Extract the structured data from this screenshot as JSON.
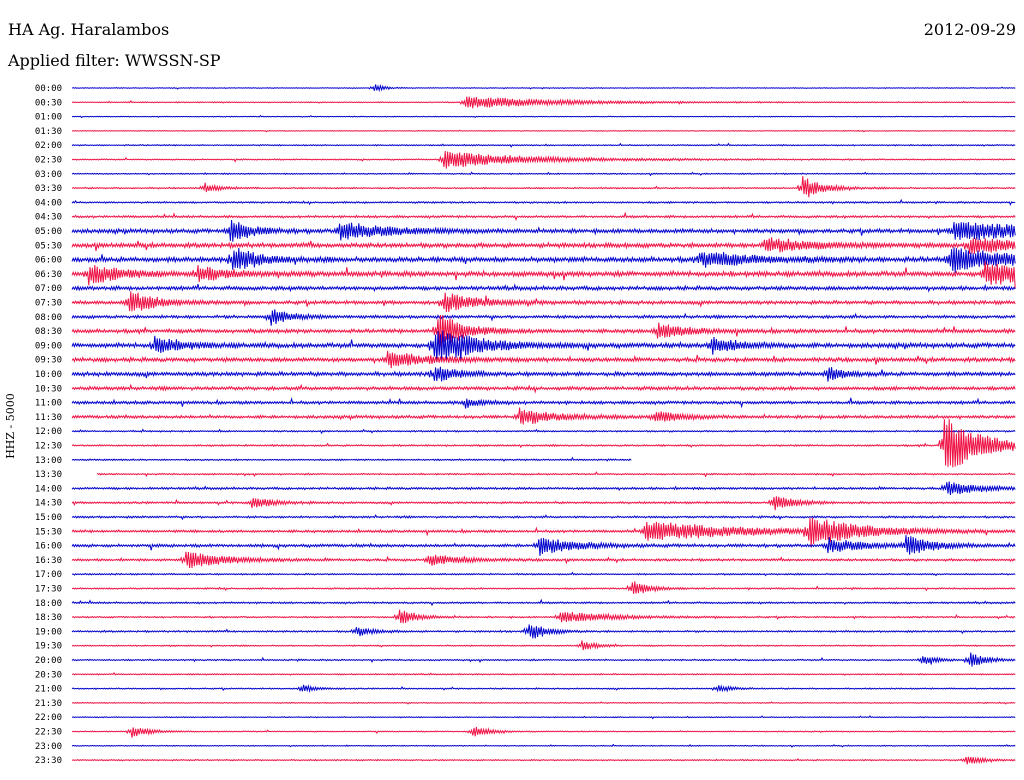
{
  "header": {
    "station": "HA Ag. Haralambos",
    "date": "2012-09-29",
    "filter": "Applied filter: WWSSN-SP"
  },
  "channel_label": "HHZ - 5000",
  "chart_data": {
    "type": "line",
    "title": "HA Ag. Haralambos",
    "subtitle": "Applied filter: WWSSN-SP",
    "ylabel": "HHZ - 5000",
    "xlabel": "",
    "row_labels": [
      "00:00",
      "00:30",
      "01:00",
      "01:30",
      "02:00",
      "02:30",
      "03:00",
      "03:30",
      "04:00",
      "04:30",
      "05:00",
      "05:30",
      "06:00",
      "06:30",
      "07:00",
      "07:30",
      "08:00",
      "08:30",
      "09:00",
      "09:30",
      "10:00",
      "10:30",
      "11:00",
      "11:30",
      "12:00",
      "12:30",
      "13:00",
      "13:30",
      "14:00",
      "14:30",
      "15:00",
      "15:30",
      "16:00",
      "16:30",
      "17:00",
      "17:30",
      "18:00",
      "18:30",
      "19:00",
      "19:30",
      "20:00",
      "20:30",
      "21:00",
      "21:30",
      "22:00",
      "22:30",
      "23:00",
      "23:30"
    ],
    "minutes_per_row": 30,
    "row_colors": [
      "#0000cc",
      "#ee1144"
    ],
    "background_amplitude": [
      0.3,
      0.4,
      0.3,
      0.3,
      0.5,
      0.5,
      0.5,
      0.6,
      0.7,
      0.9,
      1.6,
      1.8,
      2.0,
      2.0,
      1.5,
      1.4,
      1.2,
      1.5,
      1.8,
      1.6,
      1.6,
      1.4,
      1.2,
      1.2,
      0.6,
      0.7,
      0.6,
      0.6,
      0.9,
      0.8,
      0.8,
      1.0,
      1.2,
      0.9,
      0.6,
      0.6,
      0.7,
      0.6,
      0.7,
      0.5,
      0.6,
      0.5,
      0.5,
      0.4,
      0.4,
      0.4,
      0.4,
      0.5
    ],
    "events": [
      {
        "row": 0,
        "minute": 9.6,
        "amp": 4,
        "dur": 0.3
      },
      {
        "row": 1,
        "minute": 12.5,
        "amp": 7,
        "dur": 2.5
      },
      {
        "row": 5,
        "minute": 11.8,
        "amp": 9,
        "dur": 2.5
      },
      {
        "row": 7,
        "minute": 23.2,
        "amp": 12,
        "dur": 0.6
      },
      {
        "row": 7,
        "minute": 4.2,
        "amp": 5,
        "dur": 0.4
      },
      {
        "row": 10,
        "minute": 5.0,
        "amp": 13,
        "dur": 0.6
      },
      {
        "row": 10,
        "minute": 8.5,
        "amp": 9,
        "dur": 1.5
      },
      {
        "row": 10,
        "minute": 28.0,
        "amp": 10,
        "dur": 2.5
      },
      {
        "row": 11,
        "minute": 22.0,
        "amp": 7,
        "dur": 1.5
      },
      {
        "row": 11,
        "minute": 28.5,
        "amp": 8,
        "dur": 1.5
      },
      {
        "row": 12,
        "minute": 5.1,
        "amp": 14,
        "dur": 0.7
      },
      {
        "row": 12,
        "minute": 20.0,
        "amp": 8,
        "dur": 1.5
      },
      {
        "row": 12,
        "minute": 27.9,
        "amp": 12,
        "dur": 2.0
      },
      {
        "row": 13,
        "minute": 0.5,
        "amp": 10,
        "dur": 1.0
      },
      {
        "row": 13,
        "minute": 4.0,
        "amp": 8,
        "dur": 0.8
      },
      {
        "row": 13,
        "minute": 29.0,
        "amp": 13,
        "dur": 1.5
      },
      {
        "row": 15,
        "minute": 1.8,
        "amp": 12,
        "dur": 0.8
      },
      {
        "row": 15,
        "minute": 11.8,
        "amp": 10,
        "dur": 1.0
      },
      {
        "row": 16,
        "minute": 6.3,
        "amp": 9,
        "dur": 0.6
      },
      {
        "row": 17,
        "minute": 11.6,
        "amp": 22,
        "dur": 0.7
      },
      {
        "row": 17,
        "minute": 18.6,
        "amp": 8,
        "dur": 0.8
      },
      {
        "row": 18,
        "minute": 2.6,
        "amp": 9,
        "dur": 0.8
      },
      {
        "row": 18,
        "minute": 11.5,
        "amp": 20,
        "dur": 1.2
      },
      {
        "row": 18,
        "minute": 20.3,
        "amp": 9,
        "dur": 0.8
      },
      {
        "row": 19,
        "minute": 10.0,
        "amp": 8,
        "dur": 1.2
      },
      {
        "row": 20,
        "minute": 11.5,
        "amp": 9,
        "dur": 0.6
      },
      {
        "row": 20,
        "minute": 24.0,
        "amp": 7,
        "dur": 0.5
      },
      {
        "row": 22,
        "minute": 12.5,
        "amp": 5,
        "dur": 0.5
      },
      {
        "row": 23,
        "minute": 14.2,
        "amp": 8,
        "dur": 1.2
      },
      {
        "row": 23,
        "minute": 18.5,
        "amp": 6,
        "dur": 0.8
      },
      {
        "row": 25,
        "minute": 27.7,
        "amp": 30,
        "dur": 1.2
      },
      {
        "row": 28,
        "minute": 27.8,
        "amp": 7,
        "dur": 1.0
      },
      {
        "row": 29,
        "minute": 22.3,
        "amp": 9,
        "dur": 0.6
      },
      {
        "row": 29,
        "minute": 5.7,
        "amp": 6,
        "dur": 0.6
      },
      {
        "row": 31,
        "minute": 18.2,
        "amp": 10,
        "dur": 3.0
      },
      {
        "row": 31,
        "minute": 23.4,
        "amp": 14,
        "dur": 1.5
      },
      {
        "row": 32,
        "minute": 14.8,
        "amp": 10,
        "dur": 1.0
      },
      {
        "row": 32,
        "minute": 26.5,
        "amp": 10,
        "dur": 0.8
      },
      {
        "row": 32,
        "minute": 24.0,
        "amp": 8,
        "dur": 1.0
      },
      {
        "row": 33,
        "minute": 3.6,
        "amp": 9,
        "dur": 1.2
      },
      {
        "row": 33,
        "minute": 11.3,
        "amp": 6,
        "dur": 1.0
      },
      {
        "row": 35,
        "minute": 17.8,
        "amp": 9,
        "dur": 0.5
      },
      {
        "row": 37,
        "minute": 10.4,
        "amp": 9,
        "dur": 0.5
      },
      {
        "row": 37,
        "minute": 15.5,
        "amp": 6,
        "dur": 1.5
      },
      {
        "row": 38,
        "minute": 14.5,
        "amp": 10,
        "dur": 0.5
      },
      {
        "row": 38,
        "minute": 9.0,
        "amp": 5,
        "dur": 0.5
      },
      {
        "row": 39,
        "minute": 16.2,
        "amp": 5,
        "dur": 0.4
      },
      {
        "row": 40,
        "minute": 28.5,
        "amp": 8,
        "dur": 0.5
      },
      {
        "row": 40,
        "minute": 27.0,
        "amp": 5,
        "dur": 0.4
      },
      {
        "row": 42,
        "minute": 7.3,
        "amp": 4,
        "dur": 0.4
      },
      {
        "row": 42,
        "minute": 20.5,
        "amp": 4,
        "dur": 0.4
      },
      {
        "row": 45,
        "minute": 1.9,
        "amp": 6,
        "dur": 0.5
      },
      {
        "row": 45,
        "minute": 12.7,
        "amp": 6,
        "dur": 0.5
      },
      {
        "row": 47,
        "minute": 28.4,
        "amp": 5,
        "dur": 0.5
      }
    ],
    "gaps": [
      {
        "row": 26,
        "start_minute": 17.8,
        "end_minute": 30
      },
      {
        "row": 27,
        "start_minute": 0,
        "end_minute": 0.8
      }
    ],
    "grid": false
  }
}
